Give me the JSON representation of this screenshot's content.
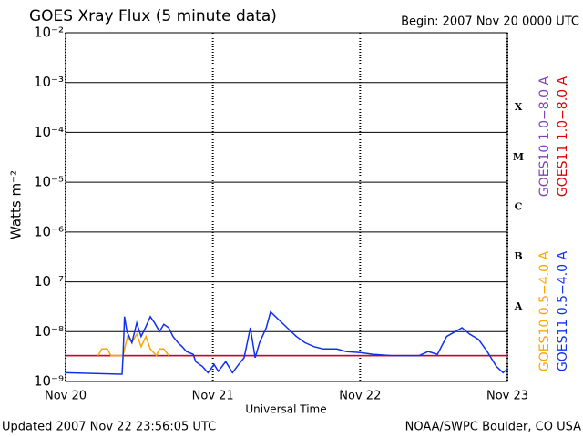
{
  "chart_data": {
    "type": "line",
    "title": "GOES Xray Flux (5 minute data)",
    "subtitle": "Begin:  2007 Nov 20 0000 UTC",
    "xlabel": "Universal Time",
    "ylabel": "Watts m⁻²",
    "footer_left": "Updated 2007 Nov 22 23:56:05 UTC",
    "footer_right": "NOAA/SWPC Boulder, CO USA",
    "log_y": true,
    "grid": true,
    "xlim": [
      0,
      72
    ],
    "xticks": [
      {
        "value": 0,
        "label": "Nov 20"
      },
      {
        "value": 24,
        "label": "Nov 21"
      },
      {
        "value": 48,
        "label": "Nov 22"
      },
      {
        "value": 72,
        "label": "Nov 23"
      }
    ],
    "ylim": [
      1e-09,
      0.01
    ],
    "yticks": [
      {
        "value": 1e-09,
        "label": "10⁻⁹"
      },
      {
        "value": 1e-08,
        "label": "10⁻⁸"
      },
      {
        "value": 1e-07,
        "label": "10⁻⁷"
      },
      {
        "value": 1e-06,
        "label": "10⁻⁶"
      },
      {
        "value": 1e-05,
        "label": "10⁻⁵"
      },
      {
        "value": 0.0001,
        "label": "10⁻⁴"
      },
      {
        "value": 0.001,
        "label": "10⁻³"
      },
      {
        "value": 0.01,
        "label": "10⁻²"
      }
    ],
    "class_labels": [
      {
        "label": "A",
        "value": 1e-08
      },
      {
        "label": "B",
        "value": 1e-07
      },
      {
        "label": "C",
        "value": 1e-06
      },
      {
        "label": "M",
        "value": 1e-05
      },
      {
        "label": "X",
        "value": 0.0001
      }
    ],
    "series": [
      {
        "name": "GOES10 1.0−8.0 A",
        "color": "#8040c0",
        "x": [
          0,
          72
        ],
        "values": [
          3.3e-09,
          3.3e-09
        ]
      },
      {
        "name": "GOES11 1.0−8.0 A",
        "color": "#e00000",
        "x": [
          0,
          72
        ],
        "values": [
          3.3e-09,
          3.3e-09
        ]
      },
      {
        "name": "GOES10 0.5−4.0 A",
        "color": "#ffa500",
        "x": [
          5.3,
          5.9,
          6.8,
          7.4,
          9.35,
          10.1,
          10.8,
          11.6,
          12.3,
          13.1,
          13.8,
          14.8,
          15.3,
          16,
          16.8
        ],
        "values": [
          3.3e-09,
          4.5e-09,
          4.5e-09,
          3.3e-09,
          3.3e-09,
          8e-09,
          6e-09,
          9e-09,
          5e-09,
          8e-09,
          4.5e-09,
          3.3e-09,
          4.5e-09,
          4.5e-09,
          3.3e-09
        ]
      },
      {
        "name": "GOES11 0.5−4.0 A",
        "color": "#1030f0",
        "x": [
          0,
          9.2,
          9.35,
          9.6,
          10,
          10.8,
          11.6,
          12.3,
          13,
          13.8,
          14.5,
          15.3,
          16,
          16.8,
          17.5,
          18.3,
          19,
          19.7,
          20.8,
          21.2,
          22.3,
          23.2,
          24.2,
          24.9,
          26.1,
          27.2,
          28.2,
          29.1,
          30.1,
          30.9,
          31.6,
          32.7,
          33.4,
          34.6,
          36.1,
          37.6,
          39,
          40.5,
          42,
          44.2,
          45.7,
          48,
          50.2,
          53.1,
          57.6,
          59.1,
          60.6,
          62.1,
          63.5,
          64.6,
          65.8,
          67.3,
          68.7,
          70.2,
          71.3,
          72
        ],
        "values": [
          1.5e-09,
          1.4e-09,
          3e-09,
          2e-08,
          1e-08,
          6e-09,
          1.5e-08,
          8e-09,
          1.2e-08,
          2e-08,
          1.5e-08,
          1e-08,
          1.4e-08,
          1.2e-08,
          8e-09,
          6e-09,
          5e-09,
          4e-09,
          3.5e-09,
          2.5e-09,
          2e-09,
          1.5e-09,
          2.2e-09,
          1.6e-09,
          2.5e-09,
          1.5e-09,
          2.2e-09,
          3e-09,
          1.2e-08,
          3e-09,
          6e-09,
          1.2e-08,
          2.5e-08,
          1.8e-08,
          1.2e-08,
          8e-09,
          6e-09,
          5e-09,
          4.5e-09,
          4.5e-09,
          4e-09,
          3.8e-09,
          3.5e-09,
          3.3e-09,
          3.3e-09,
          4e-09,
          3.5e-09,
          8e-09,
          1e-08,
          1.2e-08,
          9e-09,
          7e-09,
          4e-09,
          2e-09,
          1.5e-09,
          1.8e-09
        ]
      }
    ]
  }
}
